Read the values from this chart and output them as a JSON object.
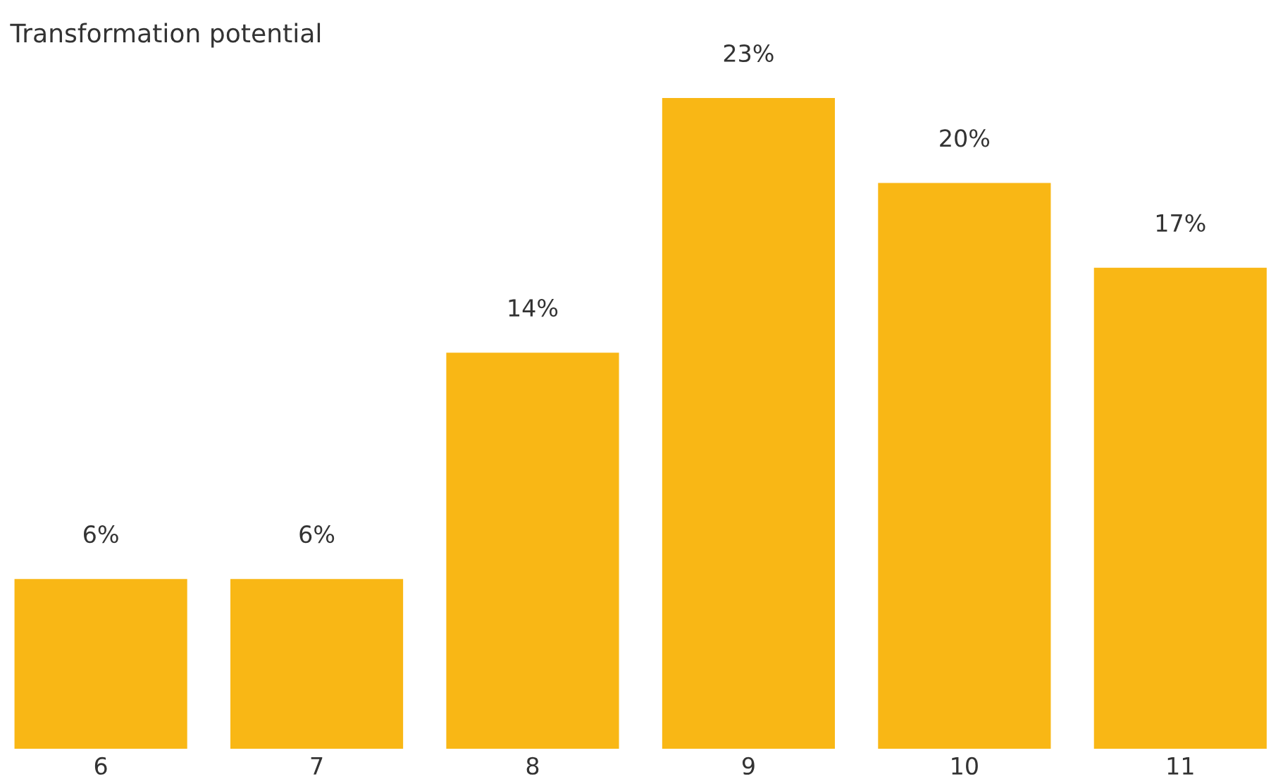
{
  "chart_data": {
    "type": "bar",
    "title": "Transformation potential",
    "categories": [
      "6",
      "7",
      "8",
      "9",
      "10",
      "11"
    ],
    "values": [
      6,
      6,
      14,
      23,
      20,
      17
    ],
    "value_labels": [
      "6%",
      "6%",
      "14%",
      "23%",
      "20%",
      "17%"
    ],
    "color": "#f9b715",
    "grid": false,
    "legend": false
  }
}
